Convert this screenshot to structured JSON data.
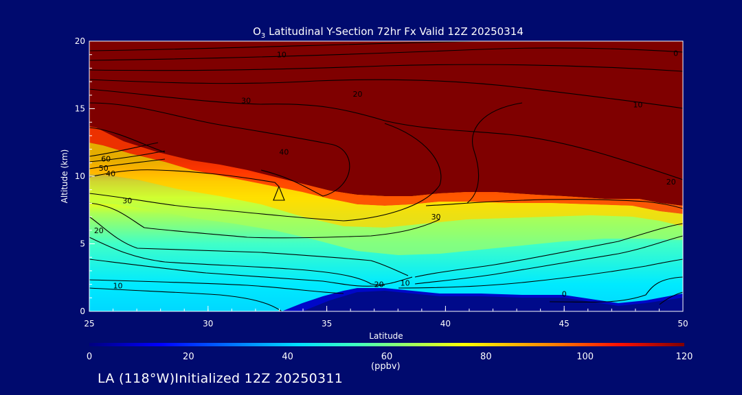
{
  "chart_data": {
    "type": "contour",
    "title_prefix": "O",
    "title_subscript": "3",
    "title_rest": " Latitudinal Y-Section 72hr  Fx Valid 12Z 20250314",
    "xlabel": "Latitude",
    "ylabel": "Altitude (km)",
    "xlim": [
      25,
      50
    ],
    "ylim": [
      0,
      20
    ],
    "xticks": [
      "25",
      "30",
      "35",
      "40",
      "45",
      "50"
    ],
    "yticks": [
      "0",
      "5",
      "10",
      "15",
      "20"
    ],
    "colorbar": {
      "range": [
        0,
        120
      ],
      "ticks": [
        "0",
        "20",
        "40",
        "60",
        "80",
        "100",
        "120"
      ],
      "unit": "(ppbv)"
    },
    "contour_labels": [
      {
        "text": "10",
        "lat": 33.1,
        "alt": 19.0
      },
      {
        "text": "0",
        "lat": 49.7,
        "alt": 19.1
      },
      {
        "text": "30",
        "lat": 31.6,
        "alt": 15.6
      },
      {
        "text": "20",
        "lat": 36.3,
        "alt": 16.1
      },
      {
        "text": "10",
        "lat": 48.1,
        "alt": 15.3
      },
      {
        "text": "40",
        "lat": 33.2,
        "alt": 11.8
      },
      {
        "text": "60",
        "lat": 25.7,
        "alt": 11.3
      },
      {
        "text": "50",
        "lat": 25.6,
        "alt": 10.6
      },
      {
        "text": "40",
        "lat": 25.9,
        "alt": 10.2
      },
      {
        "text": "20",
        "lat": 49.5,
        "alt": 9.6
      },
      {
        "text": "30",
        "lat": 26.6,
        "alt": 8.2
      },
      {
        "text": "30",
        "lat": 39.6,
        "alt": 7.0
      },
      {
        "text": "20",
        "lat": 25.4,
        "alt": 6.0
      },
      {
        "text": "10",
        "lat": 26.2,
        "alt": 1.9
      },
      {
        "text": "20",
        "lat": 37.2,
        "alt": 2.0
      },
      {
        "text": "10",
        "lat": 38.3,
        "alt": 2.1
      },
      {
        "text": "0",
        "lat": 45.0,
        "alt": 1.3
      }
    ],
    "field_bands": [
      {
        "from_alt": 0.0,
        "to_alt": 1.0,
        "value": 10
      },
      {
        "from_alt": 1.0,
        "to_alt": 3.0,
        "value": 40
      },
      {
        "from_alt": 3.0,
        "to_alt": 5.0,
        "value": 50
      },
      {
        "from_alt": 5.0,
        "to_alt": 7.0,
        "value": 60
      },
      {
        "from_alt": 7.0,
        "to_alt": 8.5,
        "value": 75
      },
      {
        "from_alt": 8.5,
        "to_alt": 9.5,
        "value": 95
      },
      {
        "from_alt": 9.5,
        "to_alt": 20.0,
        "value": 120
      }
    ]
  },
  "footer": {
    "text": "LA (118°W)Initialized 12Z 20250311"
  },
  "colors": {
    "background": "#000a6e",
    "text": "#ffffff",
    "contour_line": "#000000",
    "max_color": "#7f0000"
  }
}
